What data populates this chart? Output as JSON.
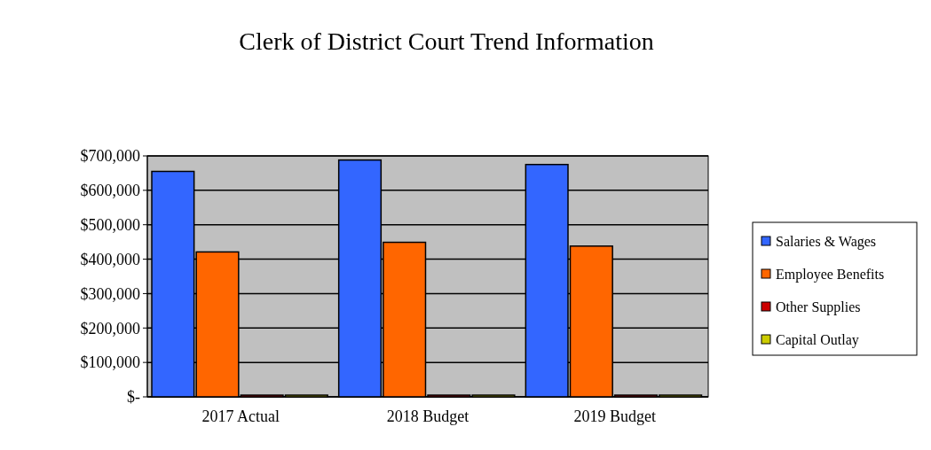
{
  "chart_data": {
    "type": "bar",
    "title": "Clerk of District Court Trend Information",
    "categories": [
      "2017 Actual",
      "2018 Budget",
      "2019 Budget"
    ],
    "series": [
      {
        "name": "Salaries & Wages",
        "color": "#3366ff",
        "values": [
          655000,
          688000,
          675000
        ]
      },
      {
        "name": "Employee Benefits",
        "color": "#ff6600",
        "values": [
          421000,
          449000,
          438000
        ]
      },
      {
        "name": "Other Supplies",
        "color": "#cc0000",
        "values": [
          5000,
          5000,
          5000
        ]
      },
      {
        "name": "Capital Outlay",
        "color": "#cccc00",
        "values": [
          5000,
          5000,
          5000
        ]
      }
    ],
    "ylim": [
      0,
      700000
    ],
    "yticks": [
      {
        "value": 0,
        "label": "$-"
      },
      {
        "value": 100000,
        "label": "$100,000"
      },
      {
        "value": 200000,
        "label": "$200,000"
      },
      {
        "value": 300000,
        "label": "$300,000"
      },
      {
        "value": 400000,
        "label": "$400,000"
      },
      {
        "value": 500000,
        "label": "$500,000"
      },
      {
        "value": 600000,
        "label": "$600,000"
      },
      {
        "value": 700000,
        "label": "$700,000"
      }
    ],
    "grid": "y",
    "legend": "right"
  }
}
